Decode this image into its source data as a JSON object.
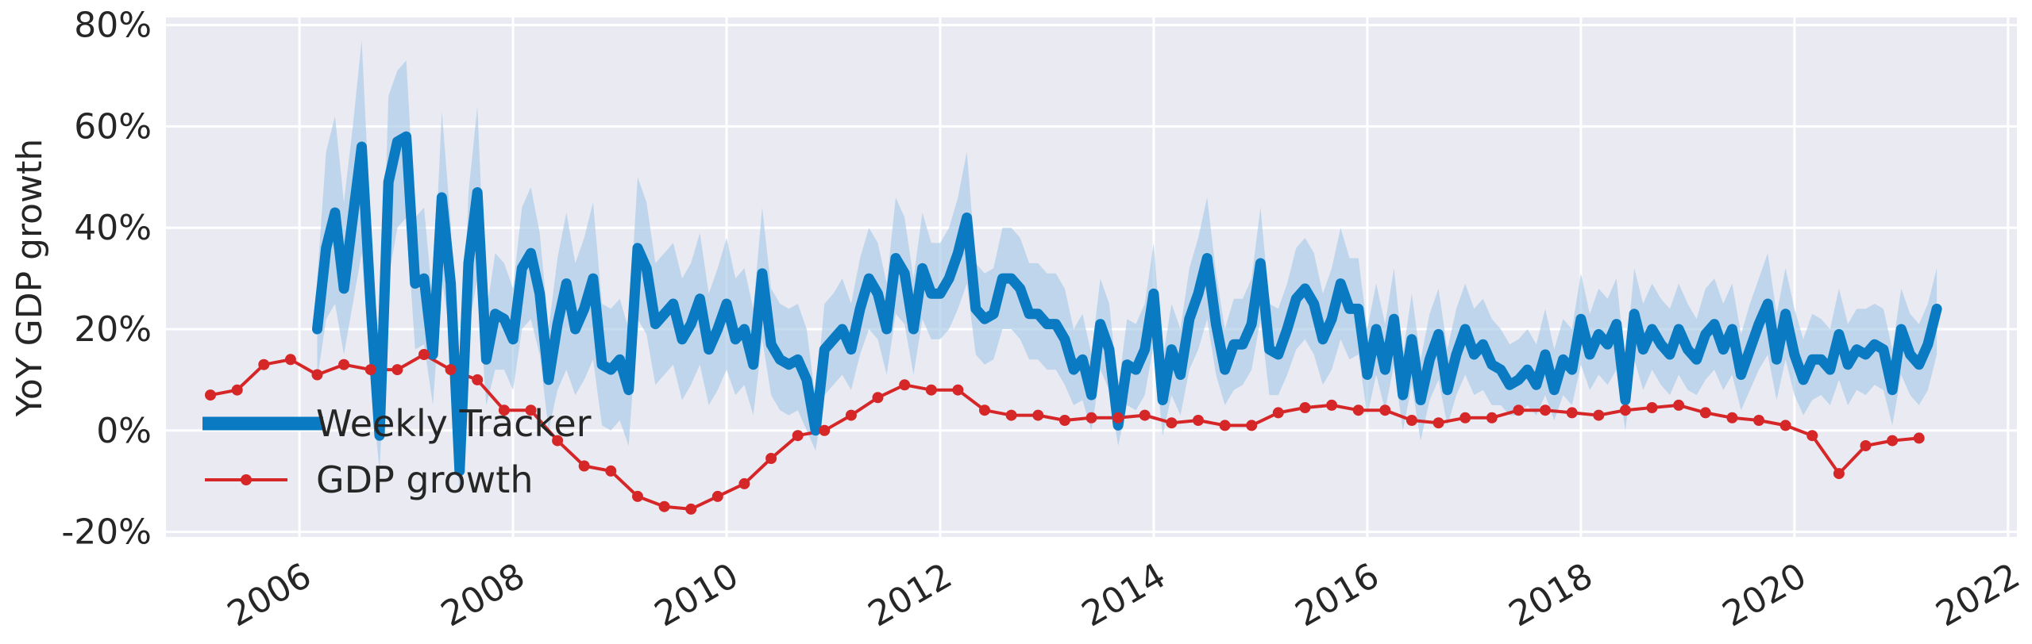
{
  "chart_data": {
    "type": "line",
    "title": "",
    "xlabel": "",
    "ylabel": "YoY GDP growth",
    "x_ticks": [
      "2006",
      "2008",
      "2010",
      "2012",
      "2014",
      "2016",
      "2018",
      "2020",
      "2022"
    ],
    "y_ticks": [
      "-20%",
      "0%",
      "20%",
      "40%",
      "60%",
      "80%"
    ],
    "xlim": [
      "2004-10-01",
      "2022-02-01"
    ],
    "ylim": [
      -0.21,
      0.815
    ],
    "grid": true,
    "legend": {
      "placement": "lower-left",
      "entries": [
        "Weekly Tracker",
        "GDP growth"
      ]
    },
    "colors": {
      "background": "#eaeaf2",
      "grid": "#ffffff",
      "tracker": "#0a7bc2",
      "band": "#a8c9e6",
      "gdp": "#d62728"
    },
    "series": [
      {
        "name": "Weekly Tracker",
        "marker": "none",
        "x": [
          "2006-03-01",
          "2006-04-01",
          "2006-05-01",
          "2006-06-01",
          "2006-07-01",
          "2006-08-01",
          "2006-09-01",
          "2006-10-01",
          "2006-11-01",
          "2006-12-01",
          "2007-01-01",
          "2007-02-01",
          "2007-03-01",
          "2007-04-01",
          "2007-05-01",
          "2007-06-01",
          "2007-07-01",
          "2007-08-01",
          "2007-09-01",
          "2007-10-01",
          "2007-11-01",
          "2007-12-01",
          "2008-01-01",
          "2008-02-01",
          "2008-03-01",
          "2008-04-01",
          "2008-05-01",
          "2008-06-01",
          "2008-07-01",
          "2008-08-01",
          "2008-09-01",
          "2008-10-01",
          "2008-11-01",
          "2008-12-01",
          "2009-01-01",
          "2009-02-01",
          "2009-03-01",
          "2009-04-01",
          "2009-05-01",
          "2009-06-01",
          "2009-07-01",
          "2009-08-01",
          "2009-09-01",
          "2009-10-01",
          "2009-11-01",
          "2009-12-01",
          "2010-01-01",
          "2010-02-01",
          "2010-03-01",
          "2010-04-01",
          "2010-05-01",
          "2010-06-01",
          "2010-07-01",
          "2010-08-01",
          "2010-09-01",
          "2010-10-01",
          "2010-11-01",
          "2010-12-01",
          "2011-01-01",
          "2011-02-01",
          "2011-03-01",
          "2011-04-01",
          "2011-05-01",
          "2011-06-01",
          "2011-07-01",
          "2011-08-01",
          "2011-09-01",
          "2011-10-01",
          "2011-11-01",
          "2011-12-01",
          "2012-01-01",
          "2012-02-01",
          "2012-03-01",
          "2012-04-01",
          "2012-05-01",
          "2012-06-01",
          "2012-07-01",
          "2012-08-01",
          "2012-09-01",
          "2012-10-01",
          "2012-11-01",
          "2012-12-01",
          "2013-01-01",
          "2013-02-01",
          "2013-03-01",
          "2013-04-01",
          "2013-05-01",
          "2013-06-01",
          "2013-07-01",
          "2013-08-01",
          "2013-09-01",
          "2013-10-01",
          "2013-11-01",
          "2013-12-01",
          "2014-01-01",
          "2014-02-01",
          "2014-03-01",
          "2014-04-01",
          "2014-05-01",
          "2014-06-01",
          "2014-07-01",
          "2014-08-01",
          "2014-09-01",
          "2014-10-01",
          "2014-11-01",
          "2014-12-01",
          "2015-01-01",
          "2015-02-01",
          "2015-03-01",
          "2015-04-01",
          "2015-05-01",
          "2015-06-01",
          "2015-07-01",
          "2015-08-01",
          "2015-09-01",
          "2015-10-01",
          "2015-11-01",
          "2015-12-01",
          "2016-01-01",
          "2016-02-01",
          "2016-03-01",
          "2016-04-01",
          "2016-05-01",
          "2016-06-01",
          "2016-07-01",
          "2016-08-01",
          "2016-09-01",
          "2016-10-01",
          "2016-11-01",
          "2016-12-01",
          "2017-01-01",
          "2017-02-01",
          "2017-03-01",
          "2017-04-01",
          "2017-05-01",
          "2017-06-01",
          "2017-07-01",
          "2017-08-01",
          "2017-09-01",
          "2017-10-01",
          "2017-11-01",
          "2017-12-01",
          "2018-01-01",
          "2018-02-01",
          "2018-03-01",
          "2018-04-01",
          "2018-05-01",
          "2018-06-01",
          "2018-07-01",
          "2018-08-01",
          "2018-09-01",
          "2018-10-01",
          "2018-11-01",
          "2018-12-01",
          "2019-01-01",
          "2019-02-01",
          "2019-03-01",
          "2019-04-01",
          "2019-05-01",
          "2019-06-01",
          "2019-07-01",
          "2019-08-01",
          "2019-09-01",
          "2019-10-01",
          "2019-11-01",
          "2019-12-01",
          "2020-01-01",
          "2020-02-01",
          "2020-03-01",
          "2020-04-01",
          "2020-05-01",
          "2020-06-01",
          "2020-07-01",
          "2020-08-01",
          "2020-09-01",
          "2020-10-01",
          "2020-11-01",
          "2020-12-01",
          "2021-01-01",
          "2021-02-01",
          "2021-03-01",
          "2021-04-01",
          "2021-05-01"
        ],
        "values": [
          0.2,
          0.36,
          0.43,
          0.28,
          0.42,
          0.56,
          0.25,
          -0.01,
          0.49,
          0.57,
          0.58,
          0.29,
          0.3,
          0.15,
          0.46,
          0.29,
          -0.08,
          0.33,
          0.47,
          0.14,
          0.23,
          0.22,
          0.18,
          0.32,
          0.35,
          0.27,
          0.1,
          0.21,
          0.29,
          0.2,
          0.24,
          0.3,
          0.13,
          0.12,
          0.14,
          0.08,
          0.36,
          0.32,
          0.21,
          0.23,
          0.25,
          0.18,
          0.21,
          0.26,
          0.16,
          0.2,
          0.25,
          0.18,
          0.2,
          0.13,
          0.31,
          0.17,
          0.14,
          0.13,
          0.14,
          0.1,
          0.0,
          0.16,
          0.18,
          0.2,
          0.16,
          0.24,
          0.3,
          0.27,
          0.2,
          0.34,
          0.31,
          0.2,
          0.32,
          0.27,
          0.27,
          0.3,
          0.35,
          0.42,
          0.24,
          0.22,
          0.23,
          0.3,
          0.3,
          0.28,
          0.23,
          0.23,
          0.21,
          0.21,
          0.18,
          0.12,
          0.14,
          0.07,
          0.21,
          0.16,
          0.01,
          0.13,
          0.12,
          0.16,
          0.27,
          0.06,
          0.16,
          0.11,
          0.22,
          0.27,
          0.34,
          0.21,
          0.12,
          0.17,
          0.17,
          0.21,
          0.33,
          0.16,
          0.15,
          0.2,
          0.26,
          0.28,
          0.25,
          0.18,
          0.22,
          0.29,
          0.24,
          0.24,
          0.11,
          0.2,
          0.12,
          0.22,
          0.07,
          0.18,
          0.06,
          0.14,
          0.19,
          0.08,
          0.15,
          0.2,
          0.15,
          0.17,
          0.13,
          0.12,
          0.09,
          0.1,
          0.12,
          0.09,
          0.15,
          0.08,
          0.14,
          0.12,
          0.22,
          0.15,
          0.19,
          0.17,
          0.21,
          0.06,
          0.23,
          0.16,
          0.2,
          0.17,
          0.15,
          0.2,
          0.16,
          0.14,
          0.19,
          0.21,
          0.16,
          0.2,
          0.11,
          0.16,
          0.21,
          0.25,
          0.14,
          0.23,
          0.15,
          0.1,
          0.14,
          0.14,
          0.12,
          0.19,
          0.13,
          0.16,
          0.15,
          0.17,
          0.16,
          0.08,
          0.2,
          0.15,
          0.13,
          0.17,
          0.24
        ],
        "band_low": [
          0.1,
          0.22,
          0.25,
          0.15,
          0.25,
          0.35,
          0.1,
          -0.08,
          0.3,
          0.4,
          0.42,
          0.16,
          0.17,
          0.05,
          0.3,
          0.18,
          -0.13,
          0.2,
          0.3,
          0.05,
          0.12,
          0.12,
          0.08,
          0.2,
          0.22,
          0.15,
          0.0,
          0.08,
          0.12,
          0.07,
          0.1,
          0.14,
          0.01,
          0.0,
          0.02,
          -0.03,
          0.22,
          0.19,
          0.09,
          0.11,
          0.13,
          0.06,
          0.09,
          0.13,
          0.05,
          0.08,
          0.12,
          0.07,
          0.09,
          0.03,
          0.18,
          0.07,
          0.04,
          0.03,
          0.04,
          0.0,
          -0.04,
          0.07,
          0.09,
          0.11,
          0.08,
          0.15,
          0.2,
          0.18,
          0.11,
          0.23,
          0.21,
          0.11,
          0.22,
          0.18,
          0.18,
          0.2,
          0.24,
          0.29,
          0.15,
          0.13,
          0.14,
          0.2,
          0.2,
          0.18,
          0.14,
          0.14,
          0.12,
          0.12,
          0.09,
          0.05,
          0.06,
          0.0,
          0.12,
          0.08,
          -0.03,
          0.05,
          0.04,
          0.07,
          0.17,
          -0.01,
          0.07,
          0.03,
          0.12,
          0.16,
          0.22,
          0.11,
          0.05,
          0.08,
          0.09,
          0.12,
          0.22,
          0.07,
          0.07,
          0.11,
          0.16,
          0.18,
          0.15,
          0.09,
          0.12,
          0.18,
          0.14,
          0.15,
          0.03,
          0.11,
          0.04,
          0.13,
          0.0,
          0.09,
          -0.02,
          0.06,
          0.1,
          0.01,
          0.07,
          0.11,
          0.07,
          0.08,
          0.05,
          0.05,
          0.03,
          0.03,
          0.05,
          0.03,
          0.07,
          0.02,
          0.07,
          0.05,
          0.13,
          0.08,
          0.11,
          0.09,
          0.12,
          0.0,
          0.14,
          0.08,
          0.12,
          0.09,
          0.07,
          0.11,
          0.08,
          0.07,
          0.1,
          0.12,
          0.08,
          0.11,
          0.04,
          0.08,
          0.12,
          0.15,
          0.06,
          0.14,
          0.07,
          0.03,
          0.06,
          0.07,
          0.05,
          0.1,
          0.05,
          0.08,
          0.07,
          0.09,
          0.08,
          0.01,
          0.11,
          0.07,
          0.05,
          0.08,
          0.15
        ],
        "band_high": [
          0.3,
          0.55,
          0.62,
          0.45,
          0.6,
          0.77,
          0.4,
          0.08,
          0.66,
          0.71,
          0.73,
          0.42,
          0.44,
          0.25,
          0.63,
          0.41,
          0.0,
          0.47,
          0.64,
          0.23,
          0.35,
          0.33,
          0.28,
          0.44,
          0.48,
          0.39,
          0.2,
          0.34,
          0.43,
          0.33,
          0.38,
          0.45,
          0.25,
          0.24,
          0.26,
          0.2,
          0.5,
          0.45,
          0.33,
          0.35,
          0.37,
          0.3,
          0.33,
          0.39,
          0.27,
          0.32,
          0.38,
          0.3,
          0.32,
          0.24,
          0.44,
          0.28,
          0.25,
          0.24,
          0.25,
          0.2,
          0.06,
          0.25,
          0.27,
          0.3,
          0.25,
          0.34,
          0.4,
          0.37,
          0.29,
          0.46,
          0.42,
          0.3,
          0.43,
          0.37,
          0.37,
          0.4,
          0.46,
          0.55,
          0.33,
          0.31,
          0.32,
          0.4,
          0.4,
          0.38,
          0.33,
          0.33,
          0.31,
          0.31,
          0.28,
          0.2,
          0.23,
          0.15,
          0.3,
          0.25,
          0.08,
          0.22,
          0.21,
          0.25,
          0.37,
          0.14,
          0.25,
          0.2,
          0.32,
          0.38,
          0.46,
          0.31,
          0.2,
          0.26,
          0.26,
          0.3,
          0.44,
          0.25,
          0.24,
          0.29,
          0.36,
          0.38,
          0.35,
          0.27,
          0.32,
          0.4,
          0.34,
          0.34,
          0.2,
          0.29,
          0.21,
          0.32,
          0.15,
          0.27,
          0.14,
          0.23,
          0.28,
          0.16,
          0.24,
          0.29,
          0.24,
          0.26,
          0.22,
          0.2,
          0.17,
          0.18,
          0.2,
          0.17,
          0.24,
          0.16,
          0.22,
          0.2,
          0.31,
          0.23,
          0.28,
          0.26,
          0.3,
          0.13,
          0.32,
          0.25,
          0.29,
          0.26,
          0.24,
          0.29,
          0.25,
          0.22,
          0.28,
          0.3,
          0.25,
          0.29,
          0.19,
          0.25,
          0.3,
          0.35,
          0.23,
          0.32,
          0.24,
          0.18,
          0.23,
          0.22,
          0.2,
          0.28,
          0.21,
          0.24,
          0.24,
          0.25,
          0.24,
          0.16,
          0.28,
          0.23,
          0.21,
          0.25,
          0.32
        ]
      },
      {
        "name": "GDP growth",
        "marker": "circle",
        "x": [
          "2005-03-01",
          "2005-06-01",
          "2005-09-01",
          "2005-12-01",
          "2006-03-01",
          "2006-06-01",
          "2006-09-01",
          "2006-12-01",
          "2007-03-01",
          "2007-06-01",
          "2007-09-01",
          "2007-12-01",
          "2008-03-01",
          "2008-06-01",
          "2008-09-01",
          "2008-12-01",
          "2009-03-01",
          "2009-06-01",
          "2009-09-01",
          "2009-12-01",
          "2010-03-01",
          "2010-06-01",
          "2010-09-01",
          "2010-12-01",
          "2011-03-01",
          "2011-06-01",
          "2011-09-01",
          "2011-12-01",
          "2012-03-01",
          "2012-06-01",
          "2012-09-01",
          "2012-12-01",
          "2013-03-01",
          "2013-06-01",
          "2013-09-01",
          "2013-12-01",
          "2014-03-01",
          "2014-06-01",
          "2014-09-01",
          "2014-12-01",
          "2015-03-01",
          "2015-06-01",
          "2015-09-01",
          "2015-12-01",
          "2016-03-01",
          "2016-06-01",
          "2016-09-01",
          "2016-12-01",
          "2017-03-01",
          "2017-06-01",
          "2017-09-01",
          "2017-12-01",
          "2018-03-01",
          "2018-06-01",
          "2018-09-01",
          "2018-12-01",
          "2019-03-01",
          "2019-06-01",
          "2019-09-01",
          "2019-12-01",
          "2020-03-01",
          "2020-06-01",
          "2020-09-01",
          "2020-12-01",
          "2021-03-01"
        ],
        "values": [
          0.07,
          0.08,
          0.13,
          0.14,
          0.11,
          0.13,
          0.12,
          0.12,
          0.15,
          0.12,
          0.1,
          0.04,
          0.04,
          -0.02,
          -0.07,
          -0.08,
          -0.13,
          -0.15,
          -0.155,
          -0.13,
          -0.105,
          -0.055,
          -0.01,
          0.0,
          0.03,
          0.065,
          0.09,
          0.08,
          0.08,
          0.04,
          0.03,
          0.03,
          0.02,
          0.025,
          0.025,
          0.03,
          0.015,
          0.02,
          0.01,
          0.01,
          0.035,
          0.045,
          0.05,
          0.04,
          0.04,
          0.02,
          0.015,
          0.025,
          0.025,
          0.04,
          0.04,
          0.035,
          0.03,
          0.04,
          0.045,
          0.05,
          0.035,
          0.025,
          0.02,
          0.01,
          -0.01,
          -0.085,
          -0.03,
          -0.02,
          -0.015
        ]
      }
    ]
  }
}
